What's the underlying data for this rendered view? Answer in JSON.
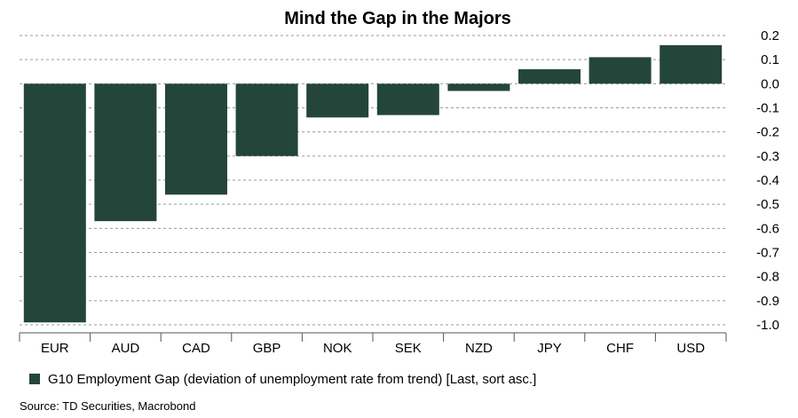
{
  "chart_data": {
    "type": "bar",
    "title": "Mind the Gap in the Majors",
    "categories": [
      "EUR",
      "AUD",
      "CAD",
      "GBP",
      "NOK",
      "SEK",
      "NZD",
      "JPY",
      "CHF",
      "USD"
    ],
    "series": [
      {
        "name": "G10 Employment Gap (deviation of unemployment rate from trend) [Last, sort asc.]",
        "color": "#24453a",
        "values": [
          -0.99,
          -0.57,
          -0.46,
          -0.3,
          -0.14,
          -0.13,
          -0.03,
          0.06,
          0.11,
          0.16
        ]
      }
    ],
    "ylim": [
      -1.0,
      0.2
    ],
    "yticks": [
      0.2,
      0.1,
      0.0,
      -0.1,
      -0.2,
      -0.3,
      -0.4,
      -0.5,
      -0.6,
      -0.7,
      -0.8,
      -0.9,
      -1.0
    ],
    "ytick_labels": [
      "0.2",
      "0.1",
      "0.0",
      "-0.1",
      "-0.2",
      "-0.3",
      "-0.4",
      "-0.5",
      "-0.6",
      "-0.7",
      "-0.8",
      "-0.9",
      "-1.0"
    ],
    "y_axis_side": "right",
    "grid": "horizontal-dashed",
    "legend": "bottom-left",
    "source": "Source: TD Securities, Macrobond"
  }
}
